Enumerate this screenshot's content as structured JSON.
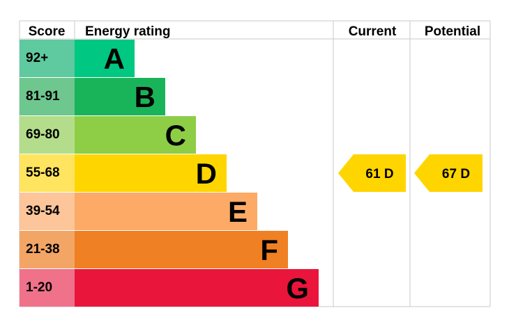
{
  "chart_data": {
    "type": "bar",
    "headers": {
      "score": "Score",
      "rating": "Energy rating",
      "current": "Current",
      "potential": "Potential"
    },
    "bands": [
      {
        "score": "92+",
        "letter": "A",
        "color": "#00c781",
        "score_color": "#5fc9a0"
      },
      {
        "score": "81-91",
        "letter": "B",
        "color": "#19b459",
        "score_color": "#6dc78e"
      },
      {
        "score": "69-80",
        "letter": "C",
        "color": "#8dce46",
        "score_color": "#b4dd8b"
      },
      {
        "score": "55-68",
        "letter": "D",
        "color": "#ffd500",
        "score_color": "#ffe45f"
      },
      {
        "score": "39-54",
        "letter": "E",
        "color": "#fcaa65",
        "score_color": "#fcc59a"
      },
      {
        "score": "21-38",
        "letter": "F",
        "color": "#ef8023",
        "score_color": "#f3a566"
      },
      {
        "score": "1-20",
        "letter": "G",
        "color": "#e9153b",
        "score_color": "#f0718a"
      }
    ],
    "current": {
      "value": 61,
      "letter": "D",
      "text": "61 D",
      "color": "#ffd500"
    },
    "potential": {
      "value": 67,
      "letter": "D",
      "text": "67 D",
      "color": "#ffd500"
    }
  }
}
